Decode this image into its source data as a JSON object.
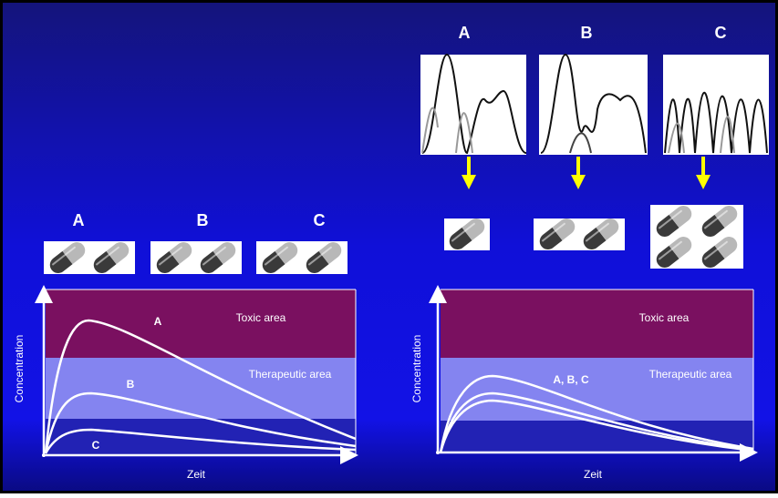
{
  "left": {
    "formulations": [
      "A",
      "B",
      "C"
    ],
    "chart": {
      "y_label": "Concentration",
      "x_label": "Zeit",
      "toxic_label": "Toxic area",
      "therapeutic_label": "Therapeutic area",
      "curve_labels": [
        "A",
        "B",
        "C"
      ]
    }
  },
  "right": {
    "genotypes": [
      "A",
      "B",
      "C"
    ],
    "chart": {
      "y_label": "Concentration",
      "x_label": "Zeit",
      "toxic_label": "Toxic area",
      "therapeutic_label": "Therapeutic area",
      "curve_label": "A, B, C"
    }
  }
}
